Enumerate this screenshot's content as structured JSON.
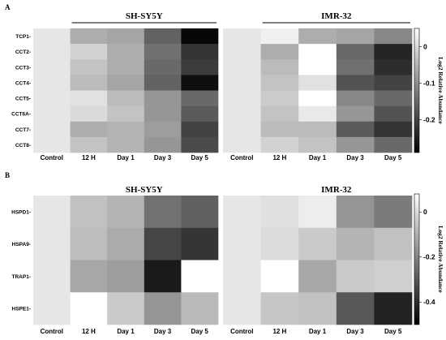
{
  "chart_data": [
    {
      "type": "heatmap",
      "panel": "A",
      "columns": [
        "Control",
        "12 H",
        "Day 1",
        "Day 3",
        "Day 5"
      ],
      "rows": [
        "TCP1",
        "CCT2",
        "CCT3",
        "CCT4",
        "CCT5",
        "CCT6A",
        "CCT7",
        "CCT8"
      ],
      "groups": [
        {
          "title": "SH-SY5Y",
          "values": [
            [
              0,
              -0.06,
              -0.07,
              -0.16,
              -0.28
            ],
            [
              0,
              -0.01,
              -0.06,
              -0.14,
              -0.22
            ],
            [
              0,
              -0.03,
              -0.06,
              -0.15,
              -0.21
            ],
            [
              0,
              -0.04,
              -0.07,
              -0.16,
              -0.27
            ],
            [
              0,
              0.01,
              -0.04,
              -0.09,
              -0.15
            ],
            [
              0,
              0.0,
              -0.03,
              -0.09,
              -0.17
            ],
            [
              0,
              -0.06,
              -0.05,
              -0.08,
              -0.2
            ],
            [
              0,
              -0.03,
              -0.05,
              -0.09,
              -0.19
            ]
          ]
        },
        {
          "title": "IMR-32",
          "values": [
            [
              0,
              0.03,
              -0.06,
              -0.07,
              -0.11
            ],
            [
              0,
              -0.06,
              0.05,
              -0.15,
              -0.24
            ],
            [
              0,
              -0.04,
              0.05,
              -0.14,
              -0.23
            ],
            [
              0,
              -0.03,
              0.01,
              -0.18,
              -0.2
            ],
            [
              0,
              -0.02,
              0.05,
              -0.11,
              -0.15
            ],
            [
              0,
              -0.03,
              0.02,
              -0.09,
              -0.18
            ],
            [
              0,
              -0.04,
              -0.04,
              -0.17,
              -0.22
            ],
            [
              0,
              -0.01,
              -0.03,
              -0.09,
              -0.15
            ]
          ]
        }
      ],
      "colorbar": {
        "label": "Log2 Relative Abundance",
        "ticks": [
          0,
          -0.1,
          -0.2
        ],
        "range": [
          -0.29,
          0.05
        ]
      }
    },
    {
      "type": "heatmap",
      "panel": "B",
      "columns": [
        "Control",
        "12 H",
        "Day 1",
        "Day 3",
        "Day 5"
      ],
      "rows": [
        "HSPD1",
        "HSPA9",
        "TRAP1",
        "HSPE1"
      ],
      "groups": [
        {
          "title": "SH-SY5Y",
          "values": [
            [
              0,
              -0.06,
              -0.09,
              -0.24,
              -0.28
            ],
            [
              0,
              -0.07,
              -0.11,
              -0.34,
              -0.38
            ],
            [
              0,
              -0.12,
              -0.14,
              -0.44,
              0.08
            ],
            [
              0,
              0.08,
              -0.04,
              -0.16,
              -0.08
            ]
          ]
        },
        {
          "title": "IMR-32",
          "values": [
            [
              0,
              0.01,
              0.04,
              -0.16,
              -0.22
            ],
            [
              0,
              0.0,
              -0.04,
              -0.09,
              -0.06
            ],
            [
              0,
              0.08,
              -0.12,
              -0.04,
              -0.03
            ],
            [
              0,
              -0.05,
              -0.06,
              -0.3,
              -0.42
            ]
          ]
        }
      ],
      "colorbar": {
        "label": "Log2 Relative Abundance",
        "ticks": [
          0,
          -0.2,
          -0.4
        ],
        "range": [
          -0.5,
          0.08
        ]
      }
    }
  ]
}
